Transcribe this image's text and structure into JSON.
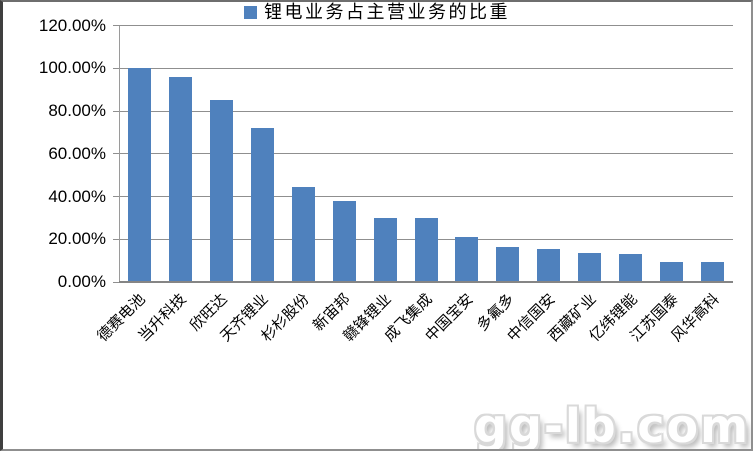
{
  "legend": {
    "label": "锂电业务占主营业务的比重",
    "marker_color": "#4f81bd"
  },
  "watermark": {
    "text": "gg-lb.com"
  },
  "chart_data": {
    "type": "bar",
    "title": "",
    "xlabel": "",
    "ylabel": "",
    "categories": [
      "德赛电池",
      "当升科技",
      "欣旺达",
      "天齐锂业",
      "杉杉股份",
      "新宙邦",
      "赣锋锂业",
      "成飞集成",
      "中国宝安",
      "多氟多",
      "中信国安",
      "西藏矿业",
      "亿纬锂能",
      "江苏国泰",
      "风华高科"
    ],
    "values": [
      100.0,
      96.0,
      85.0,
      72.0,
      44.5,
      38.0,
      30.0,
      30.0,
      21.0,
      16.5,
      15.5,
      13.5,
      13.0,
      9.5,
      9.5
    ],
    "series_name": "锂电业务占主营业务的比重",
    "unit": "%",
    "ylim": [
      0,
      120
    ],
    "ytick_step": 20,
    "ytick_labels": [
      "0.00%",
      "20.00%",
      "40.00%",
      "60.00%",
      "80.00%",
      "100.00%",
      "120.00%"
    ],
    "bar_color": "#4f81bd",
    "grid": true,
    "legend_position": "bottom"
  }
}
